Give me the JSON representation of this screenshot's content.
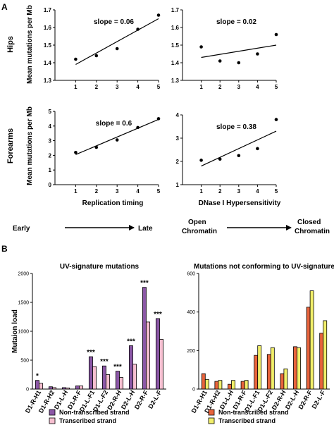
{
  "panel_labels": [
    "A",
    "B"
  ],
  "row_labels": [
    "Hips",
    "Forearms"
  ],
  "axis_text": {
    "ylabel": "Mean mutations per Mb",
    "xlabel_left": "Replication timing",
    "xlabel_right": "DNase I Hypersensitivity",
    "arrow_left_start": "Early",
    "arrow_left_end": "Late",
    "arrow_right_start_1": "Open",
    "arrow_right_start_2": "Chromatin",
    "arrow_right_end_1": "Closed",
    "arrow_right_end_2": "Chromatin",
    "bar_ylabel": "Mutaion load"
  },
  "chart_data": [
    {
      "type": "scatter",
      "id": "hips-replication",
      "x": [
        1,
        2,
        3,
        4,
        5
      ],
      "y": [
        1.42,
        1.44,
        1.48,
        1.59,
        1.67
      ],
      "annotation": "slope = 0.06",
      "ylim": [
        1.3,
        1.7
      ],
      "yticks": [
        "1.3",
        "1.4",
        "1.5",
        "1.6",
        "1.7"
      ],
      "xlim": [
        0,
        5
      ],
      "xticks": [
        "1",
        "2",
        "3",
        "4",
        "5"
      ],
      "fit": [
        1.39,
        1.65
      ]
    },
    {
      "type": "scatter",
      "id": "hips-dnase",
      "x": [
        1,
        2,
        3,
        4,
        5
      ],
      "y": [
        1.49,
        1.41,
        1.4,
        1.45,
        1.56
      ],
      "annotation": "slope = 0.02",
      "ylim": [
        1.3,
        1.7
      ],
      "yticks": [
        "1.3",
        "1.4",
        "1.5",
        "1.6",
        "1.7"
      ],
      "xlim": [
        0,
        5
      ],
      "xticks": [
        "1",
        "2",
        "3",
        "4",
        "5"
      ],
      "fit": [
        1.43,
        1.5
      ]
    },
    {
      "type": "scatter",
      "id": "forearms-replication",
      "x": [
        1,
        2,
        3,
        4,
        5
      ],
      "y": [
        2.2,
        2.55,
        3.05,
        3.9,
        4.5
      ],
      "annotation": "slope = 0.6",
      "ylim": [
        0,
        5
      ],
      "yticks": [
        "0",
        "1",
        "2",
        "3",
        "4",
        "5"
      ],
      "xlim": [
        0,
        5
      ],
      "xticks": [
        "1",
        "2",
        "3",
        "4",
        "5"
      ],
      "fit": [
        2.05,
        4.45
      ]
    },
    {
      "type": "scatter",
      "id": "forearms-dnase",
      "x": [
        1,
        2,
        3,
        4,
        5
      ],
      "y": [
        2.05,
        2.1,
        2.25,
        2.55,
        3.8
      ],
      "annotation": "slope = 0.38",
      "ylim": [
        1,
        4
      ],
      "yticks": [
        "1",
        "2",
        "3",
        "4"
      ],
      "xlim": [
        0,
        5
      ],
      "xticks": [
        "1",
        "2",
        "3",
        "4",
        "5"
      ],
      "fit": [
        1.8,
        3.3
      ]
    },
    {
      "type": "bar",
      "id": "uv-signature",
      "title": "UV-signature mutations",
      "categories": [
        "D1-R-H1",
        "D1-R-H2",
        "D1-L-H",
        "D1-R-F",
        "D1-L-F1",
        "D1-L-F2",
        "D2-R-H",
        "D2-L-H",
        "D2-R-F",
        "D2-L-F"
      ],
      "series": [
        {
          "name": "Non-transcribed strand",
          "color": "#8b57a6",
          "values": [
            150,
            40,
            25,
            55,
            560,
            400,
            310,
            750,
            1760,
            1220
          ]
        },
        {
          "name": "Transcribed strand",
          "color": "#f6bfd0",
          "values": [
            100,
            25,
            20,
            55,
            390,
            250,
            200,
            430,
            1160,
            860
          ]
        }
      ],
      "significance": [
        "*",
        "",
        "",
        "",
        "***",
        "***",
        "***",
        "***",
        "***",
        "***"
      ],
      "ylabel": "Mutaion load",
      "ylim": [
        0,
        2000
      ],
      "yticks": [
        "0",
        "500",
        "1000",
        "1500",
        "2000"
      ]
    },
    {
      "type": "bar",
      "id": "non-uv",
      "title": "Mutations not conforming to UV-signature",
      "categories": [
        "D1-R-H1",
        "D1-R-H2",
        "D1-L-H",
        "D1-R-F",
        "D1-L-F1",
        "D1-L-F2",
        "D2-R-H",
        "D2-L-H",
        "D2-R-F",
        "D2-L-F"
      ],
      "series": [
        {
          "name": "Non-transcribed strand",
          "color": "#e8643c",
          "values": [
            80,
            40,
            25,
            40,
            175,
            180,
            80,
            220,
            425,
            290
          ]
        },
        {
          "name": "Transcribed strand",
          "color": "#f2ef6a",
          "values": [
            50,
            45,
            45,
            45,
            225,
            215,
            105,
            215,
            510,
            355
          ]
        }
      ],
      "ylim": [
        0,
        600
      ],
      "yticks": [
        "0",
        "200",
        "400",
        "600"
      ]
    }
  ]
}
